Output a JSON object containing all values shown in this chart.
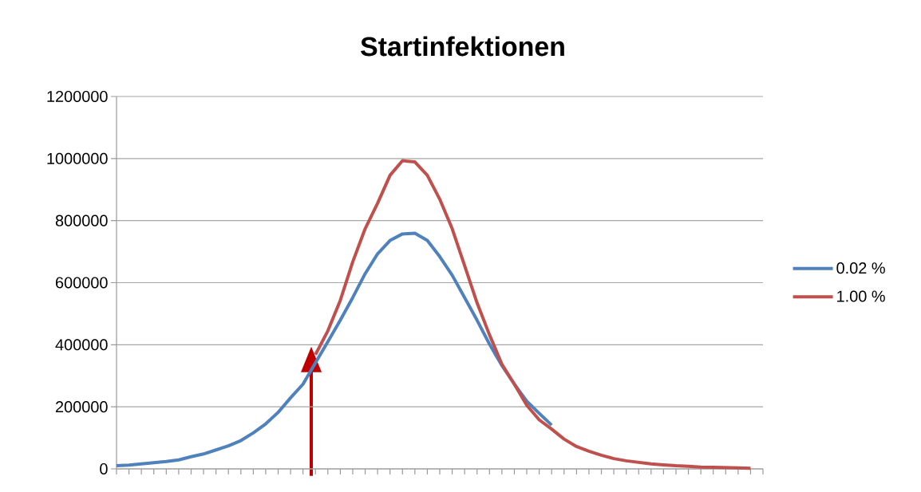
{
  "chart_data": {
    "type": "line",
    "title": "Startinfektionen",
    "categories": [
      null,
      null,
      null,
      null,
      null,
      null,
      null,
      null,
      null,
      null,
      null,
      null,
      null,
      null,
      null,
      null,
      null,
      null,
      null,
      null,
      null,
      null,
      null,
      null,
      null,
      null,
      null,
      null,
      null,
      null,
      null,
      null,
      null,
      null,
      null,
      null,
      null,
      null,
      null,
      null,
      null,
      null,
      null,
      null,
      null,
      null,
      null,
      null,
      null,
      null,
      null,
      null,
      null
    ],
    "series": [
      {
        "name": "0.02 %",
        "color": "#4f81bd",
        "values": [
          10000,
          12000,
          16000,
          20000,
          24000,
          29000,
          39000,
          48000,
          61000,
          74000,
          91000,
          116000,
          145000,
          182000,
          229000,
          273000,
          342000,
          410000,
          479000,
          552000,
          629000,
          693000,
          736000,
          757000,
          759000,
          736000,
          684000,
          624000,
          552000,
          479000,
          402000,
          333000,
          273000,
          218000,
          179000,
          141000,
          null,
          null,
          null,
          null,
          null,
          null,
          null,
          null,
          null,
          null,
          null,
          null,
          null,
          null,
          null,
          null,
          null
        ]
      },
      {
        "name": "1.00 %",
        "color": "#c0504d",
        "values": [
          null,
          null,
          null,
          null,
          null,
          null,
          null,
          null,
          null,
          null,
          null,
          null,
          null,
          null,
          null,
          null,
          368000,
          445000,
          543000,
          667000,
          774000,
          856000,
          946000,
          993000,
          989000,
          946000,
          869000,
          774000,
          655000,
          535000,
          432000,
          337000,
          273000,
          205000,
          158000,
          128000,
          96000,
          72000,
          57000,
          44000,
          33000,
          26000,
          21000,
          16000,
          13000,
          10000,
          8000,
          6000,
          5000,
          4000,
          3000,
          2000,
          null
        ]
      }
    ],
    "ylim": [
      0,
      1200000
    ],
    "yticks": [
      0,
      200000,
      400000,
      600000,
      800000,
      1000000,
      1200000
    ],
    "grid": "y",
    "legend": "right",
    "marker": "none",
    "line_style": "solid"
  }
}
